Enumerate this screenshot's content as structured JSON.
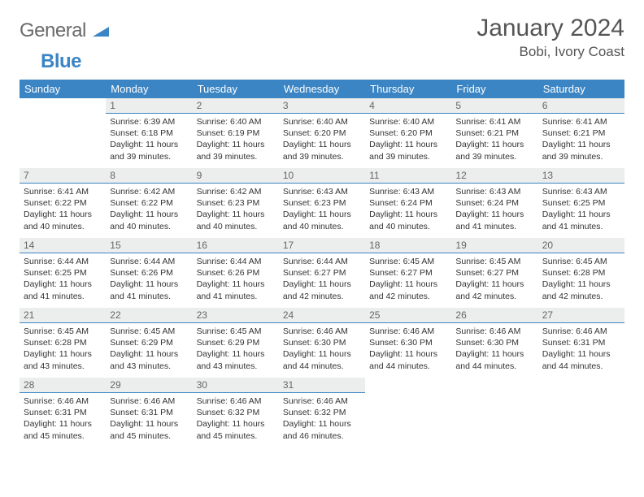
{
  "logo": {
    "word1": "General",
    "word2": "Blue"
  },
  "header": {
    "month": "January 2024",
    "location": "Bobi, Ivory Coast"
  },
  "colors": {
    "header_bg": "#3b85c4",
    "header_text": "#ffffff",
    "daynum_bg": "#eceded",
    "rule": "#3b85c4",
    "body_text": "#333333",
    "logo_gray": "#6a6a6a",
    "logo_blue": "#3b85c4"
  },
  "weekdays": [
    "Sunday",
    "Monday",
    "Tuesday",
    "Wednesday",
    "Thursday",
    "Friday",
    "Saturday"
  ],
  "first_weekday_index": 1,
  "days": [
    {
      "n": 1,
      "sunrise": "6:39 AM",
      "sunset": "6:18 PM",
      "daylight": "11 hours and 39 minutes."
    },
    {
      "n": 2,
      "sunrise": "6:40 AM",
      "sunset": "6:19 PM",
      "daylight": "11 hours and 39 minutes."
    },
    {
      "n": 3,
      "sunrise": "6:40 AM",
      "sunset": "6:20 PM",
      "daylight": "11 hours and 39 minutes."
    },
    {
      "n": 4,
      "sunrise": "6:40 AM",
      "sunset": "6:20 PM",
      "daylight": "11 hours and 39 minutes."
    },
    {
      "n": 5,
      "sunrise": "6:41 AM",
      "sunset": "6:21 PM",
      "daylight": "11 hours and 39 minutes."
    },
    {
      "n": 6,
      "sunrise": "6:41 AM",
      "sunset": "6:21 PM",
      "daylight": "11 hours and 39 minutes."
    },
    {
      "n": 7,
      "sunrise": "6:41 AM",
      "sunset": "6:22 PM",
      "daylight": "11 hours and 40 minutes."
    },
    {
      "n": 8,
      "sunrise": "6:42 AM",
      "sunset": "6:22 PM",
      "daylight": "11 hours and 40 minutes."
    },
    {
      "n": 9,
      "sunrise": "6:42 AM",
      "sunset": "6:23 PM",
      "daylight": "11 hours and 40 minutes."
    },
    {
      "n": 10,
      "sunrise": "6:43 AM",
      "sunset": "6:23 PM",
      "daylight": "11 hours and 40 minutes."
    },
    {
      "n": 11,
      "sunrise": "6:43 AM",
      "sunset": "6:24 PM",
      "daylight": "11 hours and 40 minutes."
    },
    {
      "n": 12,
      "sunrise": "6:43 AM",
      "sunset": "6:24 PM",
      "daylight": "11 hours and 41 minutes."
    },
    {
      "n": 13,
      "sunrise": "6:43 AM",
      "sunset": "6:25 PM",
      "daylight": "11 hours and 41 minutes."
    },
    {
      "n": 14,
      "sunrise": "6:44 AM",
      "sunset": "6:25 PM",
      "daylight": "11 hours and 41 minutes."
    },
    {
      "n": 15,
      "sunrise": "6:44 AM",
      "sunset": "6:26 PM",
      "daylight": "11 hours and 41 minutes."
    },
    {
      "n": 16,
      "sunrise": "6:44 AM",
      "sunset": "6:26 PM",
      "daylight": "11 hours and 41 minutes."
    },
    {
      "n": 17,
      "sunrise": "6:44 AM",
      "sunset": "6:27 PM",
      "daylight": "11 hours and 42 minutes."
    },
    {
      "n": 18,
      "sunrise": "6:45 AM",
      "sunset": "6:27 PM",
      "daylight": "11 hours and 42 minutes."
    },
    {
      "n": 19,
      "sunrise": "6:45 AM",
      "sunset": "6:27 PM",
      "daylight": "11 hours and 42 minutes."
    },
    {
      "n": 20,
      "sunrise": "6:45 AM",
      "sunset": "6:28 PM",
      "daylight": "11 hours and 42 minutes."
    },
    {
      "n": 21,
      "sunrise": "6:45 AM",
      "sunset": "6:28 PM",
      "daylight": "11 hours and 43 minutes."
    },
    {
      "n": 22,
      "sunrise": "6:45 AM",
      "sunset": "6:29 PM",
      "daylight": "11 hours and 43 minutes."
    },
    {
      "n": 23,
      "sunrise": "6:45 AM",
      "sunset": "6:29 PM",
      "daylight": "11 hours and 43 minutes."
    },
    {
      "n": 24,
      "sunrise": "6:46 AM",
      "sunset": "6:30 PM",
      "daylight": "11 hours and 44 minutes."
    },
    {
      "n": 25,
      "sunrise": "6:46 AM",
      "sunset": "6:30 PM",
      "daylight": "11 hours and 44 minutes."
    },
    {
      "n": 26,
      "sunrise": "6:46 AM",
      "sunset": "6:30 PM",
      "daylight": "11 hours and 44 minutes."
    },
    {
      "n": 27,
      "sunrise": "6:46 AM",
      "sunset": "6:31 PM",
      "daylight": "11 hours and 44 minutes."
    },
    {
      "n": 28,
      "sunrise": "6:46 AM",
      "sunset": "6:31 PM",
      "daylight": "11 hours and 45 minutes."
    },
    {
      "n": 29,
      "sunrise": "6:46 AM",
      "sunset": "6:31 PM",
      "daylight": "11 hours and 45 minutes."
    },
    {
      "n": 30,
      "sunrise": "6:46 AM",
      "sunset": "6:32 PM",
      "daylight": "11 hours and 45 minutes."
    },
    {
      "n": 31,
      "sunrise": "6:46 AM",
      "sunset": "6:32 PM",
      "daylight": "11 hours and 46 minutes."
    }
  ],
  "labels": {
    "sunrise": "Sunrise:",
    "sunset": "Sunset:",
    "daylight": "Daylight:"
  }
}
